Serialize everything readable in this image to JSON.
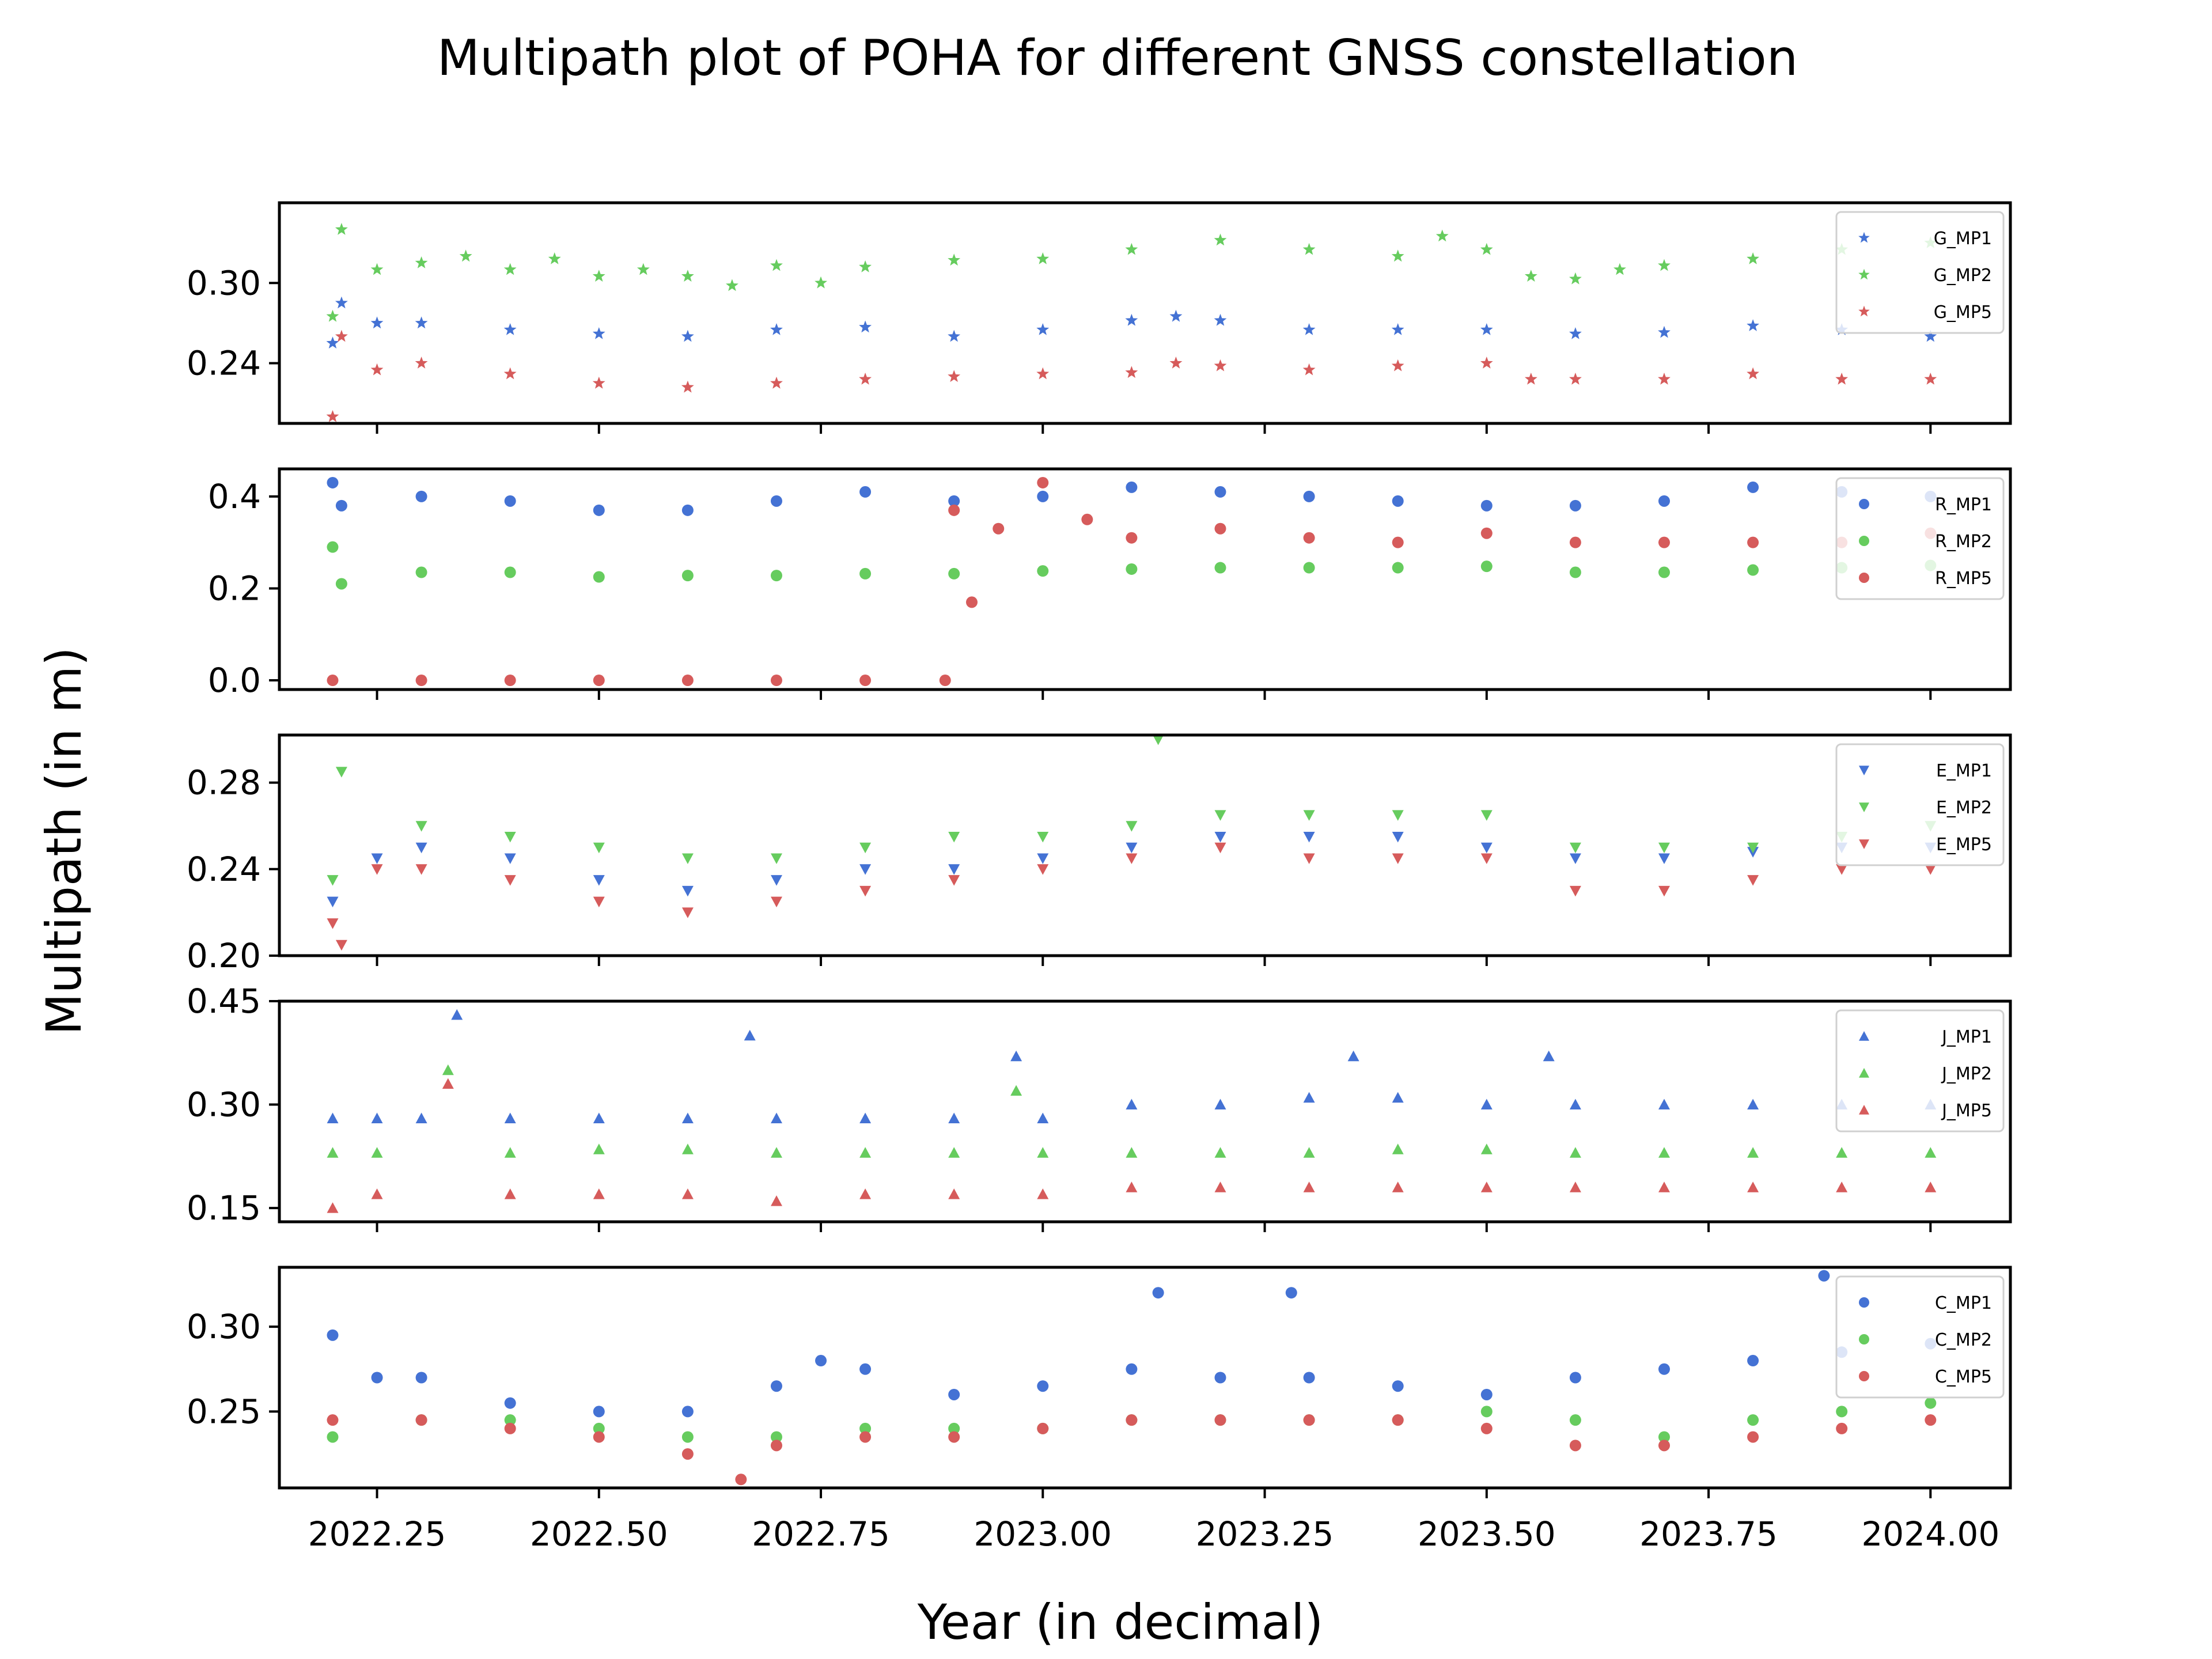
{
  "chart_data": {
    "type": "scatter",
    "title": "Multipath plot of POHA for different GNSS constellation",
    "xlabel": "Year (in decimal)",
    "ylabel": "Multipath (in m)",
    "xlim": [
      2022.14,
      2024.09
    ],
    "xticks": [
      2022.25,
      2022.5,
      2022.75,
      2023.0,
      2023.25,
      2023.5,
      2023.75,
      2024.0
    ],
    "xtick_labels": [
      "2022.25",
      "2022.50",
      "2022.75",
      "2023.00",
      "2023.25",
      "2023.50",
      "2023.75",
      "2024.00"
    ],
    "grid": false,
    "legend_position": "top-right",
    "colors": {
      "MP1": "#4472d4",
      "MP2": "#66cc5e",
      "MP5": "#d65b5b"
    },
    "panels": [
      {
        "constellation": "G",
        "marker": "star",
        "ylim": [
          0.195,
          0.36
        ],
        "yticks": [
          0.24,
          0.3
        ],
        "ytick_labels": [
          "0.24",
          "0.30"
        ],
        "series": [
          {
            "name": "G_MP1",
            "color": "#4472d4",
            "x": [
              2022.2,
              2022.21,
              2022.25,
              2022.3,
              2022.4,
              2022.5,
              2022.6,
              2022.7,
              2022.8,
              2022.9,
              2023.0,
              2023.1,
              2023.15,
              2023.2,
              2023.3,
              2023.4,
              2023.5,
              2023.6,
              2023.7,
              2023.8,
              2023.9,
              2024.0
            ],
            "values": [
              0.255,
              0.285,
              0.27,
              0.27,
              0.265,
              0.262,
              0.26,
              0.265,
              0.267,
              0.26,
              0.265,
              0.272,
              0.275,
              0.272,
              0.265,
              0.265,
              0.265,
              0.262,
              0.263,
              0.268,
              0.265,
              0.26
            ]
          },
          {
            "name": "G_MP2",
            "color": "#66cc5e",
            "x": [
              2022.2,
              2022.21,
              2022.25,
              2022.3,
              2022.35,
              2022.4,
              2022.45,
              2022.5,
              2022.55,
              2022.6,
              2022.65,
              2022.7,
              2022.75,
              2022.8,
              2022.9,
              2023.0,
              2023.1,
              2023.2,
              2023.3,
              2023.4,
              2023.45,
              2023.5,
              2023.55,
              2023.6,
              2023.65,
              2023.7,
              2023.8,
              2023.9,
              2024.0
            ],
            "values": [
              0.275,
              0.34,
              0.31,
              0.315,
              0.32,
              0.31,
              0.318,
              0.305,
              0.31,
              0.305,
              0.298,
              0.313,
              0.3,
              0.312,
              0.317,
              0.318,
              0.325,
              0.332,
              0.325,
              0.32,
              0.335,
              0.325,
              0.305,
              0.303,
              0.31,
              0.313,
              0.318,
              0.325,
              0.33
            ]
          },
          {
            "name": "G_MP5",
            "color": "#d65b5b",
            "x": [
              2022.2,
              2022.21,
              2022.25,
              2022.3,
              2022.4,
              2022.5,
              2022.6,
              2022.7,
              2022.8,
              2022.9,
              2023.0,
              2023.1,
              2023.15,
              2023.2,
              2023.3,
              2023.4,
              2023.5,
              2023.55,
              2023.6,
              2023.7,
              2023.8,
              2023.9,
              2024.0
            ],
            "values": [
              0.2,
              0.26,
              0.235,
              0.24,
              0.232,
              0.225,
              0.222,
              0.225,
              0.228,
              0.23,
              0.232,
              0.233,
              0.24,
              0.238,
              0.235,
              0.238,
              0.24,
              0.228,
              0.228,
              0.228,
              0.232,
              0.228,
              0.228
            ]
          }
        ]
      },
      {
        "constellation": "R",
        "marker": "circle",
        "ylim": [
          -0.02,
          0.46
        ],
        "yticks": [
          0.0,
          0.2,
          0.4
        ],
        "ytick_labels": [
          "0.0",
          "0.2",
          "0.4"
        ],
        "series": [
          {
            "name": "R_MP1",
            "color": "#4472d4",
            "x": [
              2022.2,
              2022.21,
              2022.3,
              2022.4,
              2022.5,
              2022.6,
              2022.7,
              2022.8,
              2022.9,
              2023.0,
              2023.1,
              2023.2,
              2023.3,
              2023.4,
              2023.5,
              2023.6,
              2023.7,
              2023.8,
              2023.9,
              2024.0
            ],
            "values": [
              0.43,
              0.38,
              0.4,
              0.39,
              0.37,
              0.37,
              0.39,
              0.41,
              0.39,
              0.4,
              0.42,
              0.41,
              0.4,
              0.39,
              0.38,
              0.38,
              0.39,
              0.42,
              0.41,
              0.4
            ]
          },
          {
            "name": "R_MP2",
            "color": "#66cc5e",
            "x": [
              2022.2,
              2022.21,
              2022.3,
              2022.4,
              2022.5,
              2022.6,
              2022.7,
              2022.8,
              2022.9,
              2023.0,
              2023.1,
              2023.2,
              2023.3,
              2023.4,
              2023.5,
              2023.6,
              2023.7,
              2023.8,
              2023.9,
              2024.0
            ],
            "values": [
              0.29,
              0.21,
              0.235,
              0.235,
              0.225,
              0.228,
              0.228,
              0.232,
              0.232,
              0.238,
              0.242,
              0.245,
              0.245,
              0.245,
              0.248,
              0.235,
              0.235,
              0.24,
              0.245,
              0.25
            ]
          },
          {
            "name": "R_MP5",
            "color": "#d65b5b",
            "x": [
              2022.2,
              2022.3,
              2022.4,
              2022.5,
              2022.6,
              2022.7,
              2022.8,
              2022.89,
              2022.9,
              2022.92,
              2022.95,
              2023.0,
              2023.05,
              2023.1,
              2023.2,
              2023.3,
              2023.4,
              2023.5,
              2023.6,
              2023.7,
              2023.8,
              2023.9,
              2024.0
            ],
            "values": [
              0.0,
              0.0,
              0.0,
              0.0,
              0.0,
              0.0,
              0.0,
              0.0,
              0.37,
              0.17,
              0.33,
              0.43,
              0.35,
              0.31,
              0.33,
              0.31,
              0.3,
              0.32,
              0.3,
              0.3,
              0.3,
              0.3,
              0.32
            ]
          }
        ]
      },
      {
        "constellation": "E",
        "marker": "triangle-down",
        "ylim": [
          0.2,
          0.302
        ],
        "yticks": [
          0.2,
          0.24,
          0.28
        ],
        "ytick_labels": [
          "0.20",
          "0.24",
          "0.28"
        ],
        "series": [
          {
            "name": "E_MP1",
            "color": "#4472d4",
            "x": [
              2022.2,
              2022.25,
              2022.3,
              2022.4,
              2022.5,
              2022.6,
              2022.7,
              2022.8,
              2022.9,
              2023.0,
              2023.1,
              2023.2,
              2023.3,
              2023.4,
              2023.5,
              2023.6,
              2023.7,
              2023.8,
              2023.9,
              2024.0
            ],
            "values": [
              0.225,
              0.245,
              0.25,
              0.245,
              0.235,
              0.23,
              0.235,
              0.24,
              0.24,
              0.245,
              0.25,
              0.255,
              0.255,
              0.255,
              0.25,
              0.245,
              0.245,
              0.248,
              0.25,
              0.25
            ]
          },
          {
            "name": "E_MP2",
            "color": "#66cc5e",
            "x": [
              2022.2,
              2022.21,
              2022.3,
              2022.4,
              2022.5,
              2022.6,
              2022.7,
              2022.8,
              2022.9,
              2023.0,
              2023.1,
              2023.13,
              2023.2,
              2023.3,
              2023.4,
              2023.5,
              2023.6,
              2023.7,
              2023.8,
              2023.9,
              2024.0
            ],
            "values": [
              0.235,
              0.285,
              0.26,
              0.255,
              0.25,
              0.245,
              0.245,
              0.25,
              0.255,
              0.255,
              0.26,
              0.3,
              0.265,
              0.265,
              0.265,
              0.265,
              0.25,
              0.25,
              0.25,
              0.255,
              0.26
            ]
          },
          {
            "name": "E_MP5",
            "color": "#d65b5b",
            "x": [
              2022.2,
              2022.21,
              2022.25,
              2022.3,
              2022.4,
              2022.5,
              2022.6,
              2022.7,
              2022.8,
              2022.9,
              2023.0,
              2023.1,
              2023.2,
              2023.3,
              2023.4,
              2023.5,
              2023.6,
              2023.7,
              2023.8,
              2023.9,
              2024.0
            ],
            "values": [
              0.215,
              0.205,
              0.24,
              0.24,
              0.235,
              0.225,
              0.22,
              0.225,
              0.23,
              0.235,
              0.24,
              0.245,
              0.25,
              0.245,
              0.245,
              0.245,
              0.23,
              0.23,
              0.235,
              0.24,
              0.24
            ]
          }
        ]
      },
      {
        "constellation": "J",
        "marker": "triangle-up",
        "ylim": [
          0.13,
          0.45
        ],
        "yticks": [
          0.15,
          0.3,
          0.45
        ],
        "ytick_labels": [
          "0.15",
          "0.30",
          "0.45"
        ],
        "series": [
          {
            "name": "J_MP1",
            "color": "#4472d4",
            "x": [
              2022.2,
              2022.25,
              2022.3,
              2022.34,
              2022.4,
              2022.5,
              2022.6,
              2022.67,
              2022.7,
              2022.8,
              2022.9,
              2022.97,
              2023.0,
              2023.1,
              2023.2,
              2023.3,
              2023.35,
              2023.4,
              2023.5,
              2023.57,
              2023.6,
              2023.7,
              2023.8,
              2023.9,
              2024.0
            ],
            "values": [
              0.28,
              0.28,
              0.28,
              0.43,
              0.28,
              0.28,
              0.28,
              0.4,
              0.28,
              0.28,
              0.28,
              0.37,
              0.28,
              0.3,
              0.3,
              0.31,
              0.37,
              0.31,
              0.3,
              0.37,
              0.3,
              0.3,
              0.3,
              0.3,
              0.3
            ]
          },
          {
            "name": "J_MP2",
            "color": "#66cc5e",
            "x": [
              2022.2,
              2022.25,
              2022.33,
              2022.4,
              2022.5,
              2022.6,
              2022.7,
              2022.8,
              2022.9,
              2022.97,
              2023.0,
              2023.1,
              2023.2,
              2023.3,
              2023.4,
              2023.5,
              2023.6,
              2023.7,
              2023.8,
              2023.9,
              2024.0
            ],
            "values": [
              0.23,
              0.23,
              0.35,
              0.23,
              0.235,
              0.235,
              0.23,
              0.23,
              0.23,
              0.32,
              0.23,
              0.23,
              0.23,
              0.23,
              0.235,
              0.235,
              0.23,
              0.23,
              0.23,
              0.23,
              0.23
            ]
          },
          {
            "name": "J_MP5",
            "color": "#d65b5b",
            "x": [
              2022.2,
              2022.25,
              2022.33,
              2022.4,
              2022.5,
              2022.6,
              2022.7,
              2022.8,
              2022.9,
              2023.0,
              2023.1,
              2023.2,
              2023.3,
              2023.4,
              2023.5,
              2023.6,
              2023.7,
              2023.8,
              2023.9,
              2024.0
            ],
            "values": [
              0.15,
              0.17,
              0.33,
              0.17,
              0.17,
              0.17,
              0.16,
              0.17,
              0.17,
              0.17,
              0.18,
              0.18,
              0.18,
              0.18,
              0.18,
              0.18,
              0.18,
              0.18,
              0.18,
              0.18
            ]
          }
        ]
      },
      {
        "constellation": "C",
        "marker": "circle",
        "ylim": [
          0.205,
          0.335
        ],
        "yticks": [
          0.25,
          0.3
        ],
        "ytick_labels": [
          "0.25",
          "0.30"
        ],
        "series": [
          {
            "name": "C_MP1",
            "color": "#4472d4",
            "x": [
              2022.2,
              2022.25,
              2022.3,
              2022.4,
              2022.5,
              2022.6,
              2022.7,
              2022.75,
              2022.8,
              2022.9,
              2023.0,
              2023.1,
              2023.13,
              2023.2,
              2023.28,
              2023.3,
              2023.4,
              2023.5,
              2023.6,
              2023.7,
              2023.8,
              2023.88,
              2023.9,
              2024.0
            ],
            "values": [
              0.295,
              0.27,
              0.27,
              0.255,
              0.25,
              0.25,
              0.265,
              0.28,
              0.275,
              0.26,
              0.265,
              0.275,
              0.32,
              0.27,
              0.32,
              0.27,
              0.265,
              0.26,
              0.27,
              0.275,
              0.28,
              0.33,
              0.285,
              0.29
            ]
          },
          {
            "name": "C_MP2",
            "color": "#66cc5e",
            "x": [
              2022.2,
              2022.3,
              2022.4,
              2022.5,
              2022.6,
              2022.7,
              2022.8,
              2022.9,
              2023.0,
              2023.1,
              2023.2,
              2023.3,
              2023.4,
              2023.5,
              2023.6,
              2023.7,
              2023.8,
              2023.9,
              2024.0
            ],
            "values": [
              0.235,
              0.245,
              0.245,
              0.24,
              0.235,
              0.235,
              0.24,
              0.24,
              0.24,
              0.245,
              0.245,
              0.245,
              0.245,
              0.25,
              0.245,
              0.235,
              0.245,
              0.25,
              0.255
            ]
          },
          {
            "name": "C_MP5",
            "color": "#d65b5b",
            "x": [
              2022.2,
              2022.3,
              2022.4,
              2022.5,
              2022.6,
              2022.66,
              2022.7,
              2022.8,
              2022.9,
              2023.0,
              2023.1,
              2023.2,
              2023.3,
              2023.4,
              2023.5,
              2023.6,
              2023.7,
              2023.8,
              2023.9,
              2024.0
            ],
            "values": [
              0.245,
              0.245,
              0.24,
              0.235,
              0.225,
              0.21,
              0.23,
              0.235,
              0.235,
              0.24,
              0.245,
              0.245,
              0.245,
              0.245,
              0.24,
              0.23,
              0.23,
              0.235,
              0.24,
              0.245
            ]
          }
        ]
      }
    ]
  }
}
